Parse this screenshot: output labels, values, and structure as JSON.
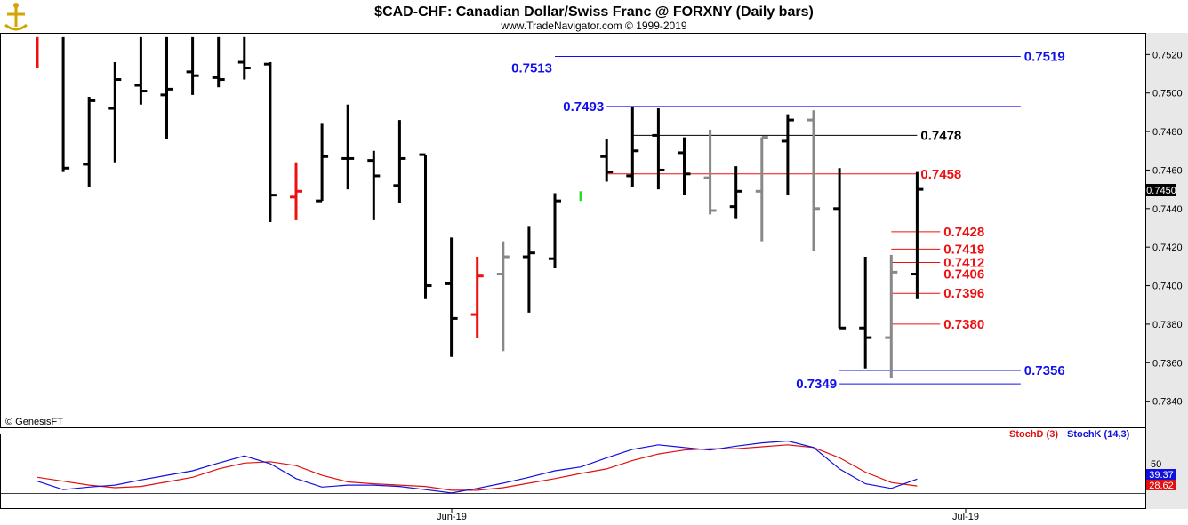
{
  "chart_data": {
    "type": "ohlc",
    "title": "$CAD-CHF:  Canadian Dollar/Swiss Franc @ FORXNY  (Daily bars)",
    "subtitle": "www.TradeNavigator.com © 1999-2019",
    "copyright": "© GenesisFT",
    "ylim": [
      0.7332,
      0.7528
    ],
    "yticks": [
      "0.7520",
      "0.7500",
      "0.7480",
      "0.7460",
      "0.7440",
      "0.7420",
      "0.7400",
      "0.7380",
      "0.7360",
      "0.7340"
    ],
    "last_price": "0.7450",
    "xlabels": [
      "Jun-19",
      "Jul-19"
    ],
    "bars": [
      {
        "o": null,
        "h": 0.7529,
        "l": 0.7513,
        "c": null,
        "color": "red"
      },
      {
        "o": null,
        "h": 0.7529,
        "l": 0.7459,
        "c": 0.7461,
        "color": "black"
      },
      {
        "o": 0.7463,
        "h": 0.7498,
        "l": 0.7451,
        "c": 0.7496,
        "color": "black"
      },
      {
        "o": 0.7492,
        "h": 0.7516,
        "l": 0.7464,
        "c": 0.7507,
        "color": "black"
      },
      {
        "o": 0.7504,
        "h": 0.7529,
        "l": 0.7494,
        "c": 0.7501,
        "color": "black"
      },
      {
        "o": 0.7499,
        "h": 0.7529,
        "l": 0.7476,
        "c": 0.7502,
        "color": "black"
      },
      {
        "o": 0.7511,
        "h": 0.7529,
        "l": 0.7499,
        "c": 0.7509,
        "color": "black"
      },
      {
        "o": 0.7508,
        "h": 0.7529,
        "l": 0.7503,
        "c": 0.7507,
        "color": "black"
      },
      {
        "o": 0.7516,
        "h": 0.7529,
        "l": 0.7507,
        "c": 0.7513,
        "color": "black"
      },
      {
        "o": 0.7515,
        "h": 0.7516,
        "l": 0.7433,
        "c": 0.7447,
        "color": "black"
      },
      {
        "o": 0.7446,
        "h": 0.7464,
        "l": 0.7434,
        "c": 0.7449,
        "color": "red"
      },
      {
        "o": 0.7444,
        "h": 0.7484,
        "l": 0.7444,
        "c": 0.7467,
        "color": "black"
      },
      {
        "o": 0.7466,
        "h": 0.7494,
        "l": 0.745,
        "c": 0.7466,
        "color": "black"
      },
      {
        "o": 0.7465,
        "h": 0.747,
        "l": 0.7434,
        "c": 0.7457,
        "color": "black"
      },
      {
        "o": 0.7452,
        "h": 0.7486,
        "l": 0.7443,
        "c": 0.7466,
        "color": "black"
      },
      {
        "o": 0.7468,
        "h": 0.7468,
        "l": 0.7393,
        "c": 0.74,
        "color": "black"
      },
      {
        "o": 0.7401,
        "h": 0.7425,
        "l": 0.7363,
        "c": 0.7383,
        "color": "black"
      },
      {
        "o": 0.7385,
        "h": 0.7415,
        "l": 0.7373,
        "c": 0.7405,
        "color": "red"
      },
      {
        "o": 0.7406,
        "h": 0.7423,
        "l": 0.7366,
        "c": 0.7415,
        "color": "gray"
      },
      {
        "o": 0.7415,
        "h": 0.7431,
        "l": 0.7386,
        "c": 0.7417,
        "color": "black"
      },
      {
        "o": 0.7414,
        "h": 0.7448,
        "l": 0.7409,
        "c": 0.7444,
        "color": "black"
      },
      {
        "o": null,
        "h": 0.7449,
        "l": 0.7444,
        "c": null,
        "color": "green"
      },
      {
        "o": 0.7467,
        "h": 0.7476,
        "l": 0.7454,
        "c": 0.7459,
        "color": "black"
      },
      {
        "o": 0.7457,
        "h": 0.7493,
        "l": 0.7451,
        "c": 0.747,
        "color": "black"
      },
      {
        "o": 0.7478,
        "h": 0.7492,
        "l": 0.745,
        "c": 0.746,
        "color": "black"
      },
      {
        "o": 0.7469,
        "h": 0.7477,
        "l": 0.7447,
        "c": 0.7458,
        "color": "black"
      },
      {
        "o": 0.7456,
        "h": 0.7481,
        "l": 0.7437,
        "c": 0.7439,
        "color": "gray"
      },
      {
        "o": 0.7441,
        "h": 0.7462,
        "l": 0.7435,
        "c": 0.7449,
        "color": "black"
      },
      {
        "o": 0.7449,
        "h": 0.7477,
        "l": 0.7423,
        "c": 0.7477,
        "color": "gray"
      },
      {
        "o": 0.7475,
        "h": 0.7489,
        "l": 0.7447,
        "c": 0.7486,
        "color": "black"
      },
      {
        "o": 0.7486,
        "h": 0.7491,
        "l": 0.7418,
        "c": 0.744,
        "color": "gray"
      },
      {
        "o": 0.744,
        "h": 0.7461,
        "l": 0.7378,
        "c": 0.7378,
        "color": "black"
      },
      {
        "o": 0.7378,
        "h": 0.7415,
        "l": 0.7357,
        "c": 0.7373,
        "color": "black"
      },
      {
        "o": 0.7373,
        "h": 0.7416,
        "l": 0.7352,
        "c": 0.7407,
        "color": "gray"
      },
      {
        "o": 0.7406,
        "h": 0.7459,
        "l": 0.7393,
        "c": 0.745,
        "color": "black"
      }
    ],
    "levels": [
      {
        "value": "0.7519",
        "color": "#1010ee",
        "text_side": "right",
        "from_bar": 20,
        "to_bar": 38
      },
      {
        "value": "0.7513",
        "color": "#1010ee",
        "text_side": "left",
        "from_bar": 20,
        "to_bar": 38
      },
      {
        "value": "0.7493",
        "color": "#1010ee",
        "text_side": "left",
        "from_bar": 22,
        "to_bar": 38
      },
      {
        "value": "0.7478",
        "color": "#000000",
        "text_side": "right",
        "from_bar": 23,
        "to_bar": 34
      },
      {
        "value": "0.7458",
        "color": "#ee1010",
        "text_side": "right",
        "from_bar": 22,
        "to_bar": 34
      },
      {
        "value": "0.7428",
        "color": "#ee1010",
        "text_side": "right",
        "from_bar": 33,
        "to_bar": 35
      },
      {
        "value": "0.7419",
        "color": "#ee1010",
        "text_side": "right",
        "from_bar": 33,
        "to_bar": 35
      },
      {
        "value": "0.7412",
        "color": "#ee1010",
        "text_side": "right",
        "from_bar": 33,
        "to_bar": 35
      },
      {
        "value": "0.7406",
        "color": "#ee1010",
        "text_side": "right",
        "from_bar": 33,
        "to_bar": 35
      },
      {
        "value": "0.7396",
        "color": "#ee1010",
        "text_side": "right",
        "from_bar": 33,
        "to_bar": 35
      },
      {
        "value": "0.7380",
        "color": "#ee1010",
        "text_side": "right",
        "from_bar": 33,
        "to_bar": 35
      },
      {
        "value": "0.7356",
        "color": "#1010ee",
        "text_side": "right",
        "from_bar": 31,
        "to_bar": 38
      },
      {
        "value": "0.7349",
        "color": "#1010ee",
        "text_side": "left",
        "from_bar": 31,
        "to_bar": 38
      }
    ],
    "stochastic": {
      "label_d": "StochD (3)",
      "label_k": "StochK (14,3)",
      "level_tick": "50",
      "k_value": "39.37",
      "d_value": "28.62",
      "k": [
        36,
        23,
        27,
        30,
        38,
        45,
        52,
        64,
        75,
        63,
        40,
        27,
        30,
        30,
        28,
        23,
        18,
        25,
        33,
        42,
        52,
        58,
        72,
        85,
        92,
        88,
        84,
        90,
        95,
        98,
        88,
        55,
        32,
        25,
        39.37
      ],
      "d": [
        42,
        36,
        30,
        26,
        28,
        35,
        42,
        55,
        64,
        66,
        60,
        45,
        35,
        32,
        30,
        28,
        22,
        22,
        26,
        33,
        40,
        48,
        55,
        68,
        78,
        84,
        86,
        86,
        89,
        92,
        88,
        72,
        50,
        34,
        28.62
      ]
    }
  }
}
